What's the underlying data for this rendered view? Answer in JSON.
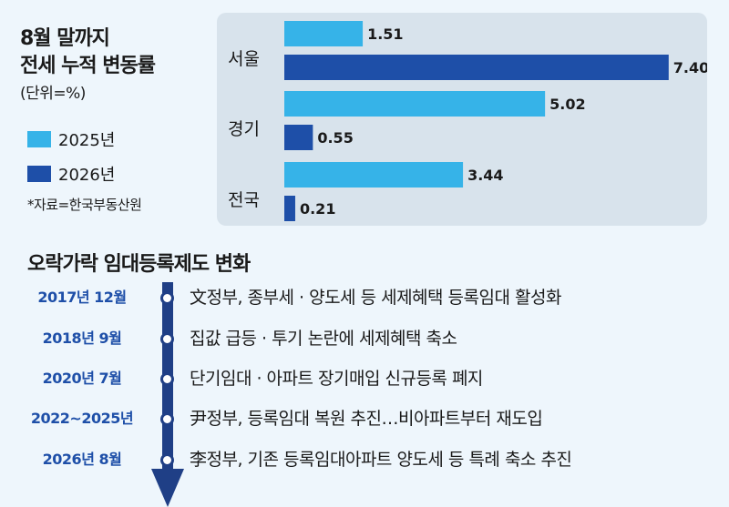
{
  "chart_data": {
    "type": "bar",
    "orientation": "horizontal",
    "title_lines": [
      "8월 말까지",
      "전세 누적 변동률"
    ],
    "unit": "(단위=%)",
    "source": "*자료=한국부동산원",
    "categories": [
      "서울",
      "경기",
      "전국"
    ],
    "series": [
      {
        "name": "2025년",
        "color": "#36b3e8",
        "values": [
          1.51,
          5.02,
          3.44
        ],
        "labels": [
          "1.51",
          "5.02",
          "3.44"
        ]
      },
      {
        "name": "2026년",
        "color": "#1e4fa8",
        "values": [
          7.4,
          0.55,
          0.21
        ],
        "labels": [
          "7.40",
          "0.55",
          "0.21"
        ]
      }
    ],
    "xlim": [
      0,
      7.7
    ],
    "grid": false,
    "legend_position": "left"
  },
  "timeline": {
    "title": "오락가락 임대등록제도 변화",
    "events": [
      {
        "date": "2017년 12월",
        "text": "文정부, 종부세 · 양도세 등 세제혜택 등록임대 활성화"
      },
      {
        "date": "2018년 9월",
        "text": "집값 급등 · 투기 논란에 세제혜택 축소"
      },
      {
        "date": "2020년 7월",
        "text": "단기임대 · 아파트 장기매입 신규등록 폐지"
      },
      {
        "date": "2022~2025년",
        "text": "尹정부, 등록임대 복원 추진…비아파트부터 재도입"
      },
      {
        "date": "2026년 8월",
        "text": "李정부, 기존 등록임대아파트 양도세 등 특례 축소 추진"
      }
    ],
    "dot_color": "#1f3f86",
    "arrow_color": "#1f3f86",
    "date_color": "#1e4fa8"
  }
}
